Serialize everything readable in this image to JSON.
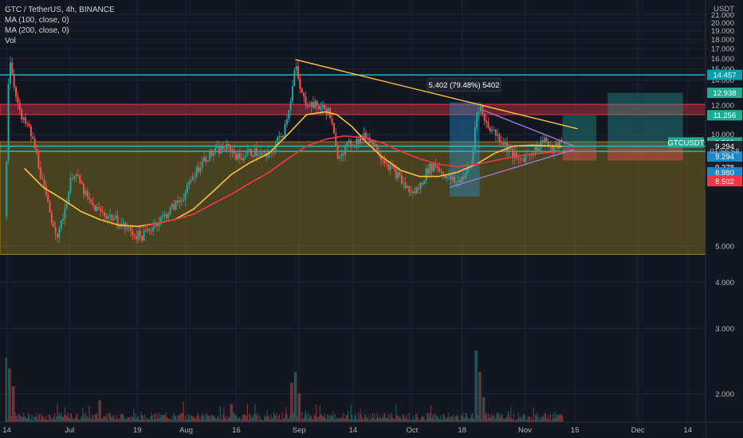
{
  "legend": {
    "symbol": "GTC / TetherUS, 4h, BINANCE",
    "ma100": "MA (100, close, 0)",
    "ma200": "MA (200, close, 0)",
    "vol": "Vol"
  },
  "chart_data": {
    "type": "candlestick",
    "symbol": "GTCUSDT",
    "currency_label": "USDT",
    "y_scale": "log",
    "ylim": [
      1.68,
      23.0
    ],
    "y_ticks": [
      {
        "v": 21.0,
        "label": "21.000"
      },
      {
        "v": 20.0,
        "label": "20.000"
      },
      {
        "v": 19.0,
        "label": "19.000"
      },
      {
        "v": 18.0,
        "label": "18.000"
      },
      {
        "v": 17.0,
        "label": "17.000"
      },
      {
        "v": 16.0,
        "label": "16.000"
      },
      {
        "v": 15.0,
        "label": "15.000"
      },
      {
        "v": 14.0,
        "label": "14.000"
      },
      {
        "v": 12.0,
        "label": "12.000"
      },
      {
        "v": 10.0,
        "label": "10.000"
      },
      {
        "v": 5.0,
        "label": "5.000"
      },
      {
        "v": 4.0,
        "label": "4.000"
      },
      {
        "v": 3.0,
        "label": "3.000"
      },
      {
        "v": 2.0,
        "label": "2.000"
      }
    ],
    "x_ticks": [
      {
        "t": 0.3,
        "label": "14"
      },
      {
        "t": 17,
        "label": "Jul"
      },
      {
        "t": 35,
        "label": "19"
      },
      {
        "t": 48,
        "label": "Aug"
      },
      {
        "t": 61.3,
        "label": "16"
      },
      {
        "t": 78,
        "label": "Sep"
      },
      {
        "t": 92.3,
        "label": "14"
      },
      {
        "t": 108,
        "label": "Oct"
      },
      {
        "t": 121.3,
        "label": "18"
      },
      {
        "t": 138,
        "label": "Nov"
      },
      {
        "t": 151.3,
        "label": "15"
      },
      {
        "t": 168,
        "label": "Dec"
      },
      {
        "t": 181.3,
        "label": "14"
      }
    ],
    "x_range": [
      -1.5,
      186
    ],
    "last_t": 148,
    "price_path": [
      [
        0,
        6.0
      ],
      [
        1,
        16.5
      ],
      [
        2,
        14.0
      ],
      [
        3,
        12.5
      ],
      [
        4,
        11.0
      ],
      [
        6,
        10.5
      ],
      [
        8,
        9.0
      ],
      [
        10,
        7.2
      ],
      [
        12,
        6.0
      ],
      [
        14,
        5.3
      ],
      [
        16,
        6.5
      ],
      [
        18,
        8.0
      ],
      [
        20,
        7.3
      ],
      [
        22,
        6.6
      ],
      [
        24,
        6.3
      ],
      [
        26,
        6.1
      ],
      [
        28,
        6.0
      ],
      [
        30,
        5.8
      ],
      [
        32,
        5.6
      ],
      [
        34,
        5.4
      ],
      [
        36,
        5.3
      ],
      [
        38,
        5.5
      ],
      [
        40,
        5.8
      ],
      [
        42,
        6.0
      ],
      [
        44,
        6.3
      ],
      [
        46,
        6.6
      ],
      [
        48,
        7.0
      ],
      [
        50,
        7.8
      ],
      [
        52,
        8.4
      ],
      [
        54,
        8.8
      ],
      [
        56,
        9.0
      ],
      [
        58,
        9.2
      ],
      [
        60,
        9.1
      ],
      [
        62,
        8.6
      ],
      [
        64,
        8.9
      ],
      [
        66,
        9.0
      ],
      [
        68,
        8.8
      ],
      [
        70,
        8.7
      ],
      [
        72,
        9.5
      ],
      [
        74,
        10.3
      ],
      [
        75,
        11.5
      ],
      [
        76,
        12.8
      ],
      [
        77,
        15.4
      ],
      [
        78,
        13.5
      ],
      [
        79,
        12.5
      ],
      [
        80,
        12.2
      ],
      [
        82,
        12.0
      ],
      [
        84,
        11.8
      ],
      [
        86,
        11.5
      ],
      [
        87,
        10.2
      ],
      [
        88,
        8.8
      ],
      [
        90,
        9.1
      ],
      [
        92,
        9.5
      ],
      [
        94,
        9.7
      ],
      [
        96,
        9.9
      ],
      [
        98,
        9.4
      ],
      [
        100,
        8.7
      ],
      [
        102,
        8.2
      ],
      [
        104,
        7.8
      ],
      [
        106,
        7.3
      ],
      [
        108,
        6.9
      ],
      [
        110,
        7.2
      ],
      [
        112,
        8.0
      ],
      [
        114,
        8.3
      ],
      [
        116,
        7.9
      ],
      [
        118,
        7.6
      ],
      [
        120,
        7.4
      ],
      [
        122,
        7.8
      ],
      [
        124,
        8.4
      ],
      [
        125,
        11.2
      ],
      [
        126,
        12.1
      ],
      [
        127,
        11.0
      ],
      [
        128,
        10.6
      ],
      [
        130,
        10.1
      ],
      [
        132,
        9.6
      ],
      [
        134,
        9.0
      ],
      [
        136,
        8.5
      ],
      [
        138,
        8.7
      ],
      [
        140,
        9.0
      ],
      [
        142,
        9.3
      ],
      [
        143,
        9.9
      ],
      [
        144,
        9.4
      ],
      [
        145,
        9.0
      ],
      [
        146,
        9.2
      ],
      [
        147,
        9.4
      ],
      [
        148,
        9.509
      ]
    ],
    "series": [
      {
        "name": "MA (100, close, 0)",
        "color": "#f9c23c",
        "points": [
          [
            5,
            8.1
          ],
          [
            10,
            7.2
          ],
          [
            15,
            6.7
          ],
          [
            20,
            6.2
          ],
          [
            25,
            5.9
          ],
          [
            30,
            5.7
          ],
          [
            35,
            5.65
          ],
          [
            40,
            5.75
          ],
          [
            45,
            5.9
          ],
          [
            50,
            6.3
          ],
          [
            55,
            7.0
          ],
          [
            60,
            7.8
          ],
          [
            65,
            8.4
          ],
          [
            70,
            8.9
          ],
          [
            75,
            10.0
          ],
          [
            80,
            11.3
          ],
          [
            85,
            11.5
          ],
          [
            88,
            11.3
          ],
          [
            92,
            10.5
          ],
          [
            96,
            9.5
          ],
          [
            100,
            8.7
          ],
          [
            105,
            8.0
          ],
          [
            110,
            7.7
          ],
          [
            115,
            7.7
          ],
          [
            120,
            7.9
          ],
          [
            125,
            8.3
          ],
          [
            130,
            8.9
          ],
          [
            135,
            9.3
          ],
          [
            140,
            9.35
          ],
          [
            145,
            9.3
          ],
          [
            148,
            9.28
          ]
        ]
      },
      {
        "name": "MA (200, close, 0)",
        "color": "#f23645",
        "points": [
          [
            35,
            5.6
          ],
          [
            40,
            5.75
          ],
          [
            45,
            5.9
          ],
          [
            50,
            6.1
          ],
          [
            55,
            6.5
          ],
          [
            60,
            6.9
          ],
          [
            65,
            7.4
          ],
          [
            70,
            7.9
          ],
          [
            75,
            8.6
          ],
          [
            80,
            9.3
          ],
          [
            85,
            9.7
          ],
          [
            90,
            9.9
          ],
          [
            95,
            9.8
          ],
          [
            100,
            9.5
          ],
          [
            105,
            9.0
          ],
          [
            110,
            8.6
          ],
          [
            115,
            8.3
          ],
          [
            120,
            8.2
          ],
          [
            125,
            8.3
          ],
          [
            130,
            8.5
          ],
          [
            135,
            8.7
          ],
          [
            140,
            8.85
          ],
          [
            145,
            8.95
          ],
          [
            148,
            8.98
          ]
        ]
      }
    ],
    "zones": [
      {
        "name": "resistance-zone",
        "from_t": -1.5,
        "to_t": 186,
        "low": 11.3,
        "high": 12.05,
        "color": "#f23645"
      },
      {
        "name": "support-zone",
        "from_t": -1.5,
        "to_t": 186,
        "low": 4.75,
        "high": 9.55,
        "color": "#a28a1e"
      }
    ],
    "hlines": [
      {
        "name": "level-14457",
        "price": 14.457,
        "color": "#22c1d6"
      },
      {
        "name": "level-9294",
        "price": 9.294,
        "color": "#22c1d6"
      },
      {
        "name": "level-9000",
        "price": 9.0,
        "color": "#22c1d6"
      }
    ],
    "trendlines": [
      {
        "name": "descending-trendline",
        "from": [
          77,
          15.9
        ],
        "to": [
          152,
          10.35
        ],
        "color": "#f9c23c"
      },
      {
        "name": "wedge-upper",
        "from": [
          127,
          11.6
        ],
        "to": [
          151,
          9.3
        ],
        "color": "#9c7bd0"
      },
      {
        "name": "wedge-lower",
        "from": [
          118,
          7.2
        ],
        "to": [
          151,
          9.1
        ],
        "color": "#9c7bd0"
      }
    ],
    "measure": {
      "from_t": 118,
      "to_t": 126,
      "low": 6.8,
      "high": 12.2,
      "label": "5.402 (79.48%) 5402"
    },
    "positions": [
      {
        "name": "long-position-1",
        "from_t": 148,
        "to_t": 157,
        "entry": 9.2,
        "target": 11.25,
        "stop": 8.5
      },
      {
        "name": "long-position-2",
        "from_t": 160,
        "to_t": 180,
        "entry": 9.2,
        "target": 12.938,
        "stop": 8.5
      }
    ],
    "price_tags": [
      {
        "price": 14.457,
        "label": "14.457",
        "color": "#089eaa"
      },
      {
        "price": 12.938,
        "label": "12.938",
        "color": "#22ab94"
      },
      {
        "price": 11.256,
        "label": "11.256",
        "color": "#22ab94"
      },
      {
        "price": 9.509,
        "label": "9.509",
        "color": "#22ab94"
      },
      {
        "price": 9.294,
        "label": "9.294",
        "color": "#1e222d"
      },
      {
        "price": 9.294,
        "label": "9.294",
        "color": "#1e88c7",
        "offset": 13
      },
      {
        "price": 9.278,
        "label": "9.278",
        "color": "#1e222d",
        "offset": 26
      },
      {
        "price": 8.98,
        "label": "8.980",
        "color": "#1e88c7",
        "offset": 26
      },
      {
        "price": 8.509,
        "label": "8.509",
        "color": "#f23645",
        "offset": 26
      },
      {
        "price": 8.502,
        "label": "8.502",
        "color": "#f23645",
        "offset": 26
      }
    ],
    "countdown": "01:56:58",
    "volume_spikes": [
      [
        0,
        0.9
      ],
      [
        1,
        0.75
      ],
      [
        2,
        0.5
      ],
      [
        25,
        0.3
      ],
      [
        60,
        0.25
      ],
      [
        76,
        0.55
      ],
      [
        77,
        0.7
      ],
      [
        78,
        0.4
      ],
      [
        125,
        1.0
      ],
      [
        126,
        0.7
      ],
      [
        127,
        0.35
      ]
    ]
  },
  "colors": {
    "up": "#26a69a",
    "down": "#ef5350",
    "bg": "#131722",
    "grid": "#1f2330"
  }
}
